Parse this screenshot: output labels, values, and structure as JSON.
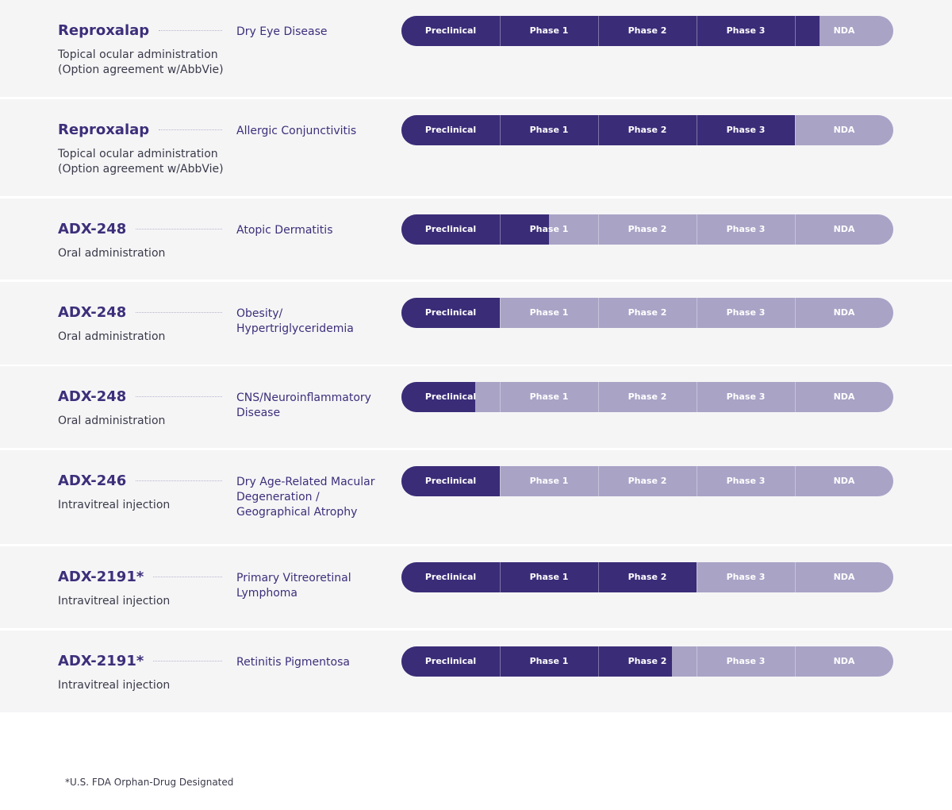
{
  "stages": [
    "Preclinical",
    "Phase 1",
    "Phase 2",
    "Phase 3",
    "NDA"
  ],
  "rows": [
    {
      "drug": "Reproxalap",
      "route": [
        "Topical ocular administration",
        "(Option agreement w/AbbVie)"
      ],
      "indication": [
        "Dry Eye Disease"
      ],
      "progress": 4.25
    },
    {
      "drug": "Reproxalap",
      "route": [
        "Topical ocular administration",
        "(Option agreement w/AbbVie)"
      ],
      "indication": [
        "Allergic Conjunctivitis"
      ],
      "progress": 4.0
    },
    {
      "drug": "ADX-248",
      "route": [
        "Oral administration"
      ],
      "indication": [
        "Atopic Dermatitis"
      ],
      "progress": 1.5
    },
    {
      "drug": "ADX-248",
      "route": [
        "Oral administration"
      ],
      "indication": [
        "Obesity/",
        "Hypertriglyceridemia"
      ],
      "progress": 1.0
    },
    {
      "drug": "ADX-248",
      "route": [
        "Oral administration"
      ],
      "indication": [
        "CNS/Neuroinflammatory",
        "Disease"
      ],
      "progress": 0.75
    },
    {
      "drug": "ADX-246",
      "route": [
        "Intravitreal injection"
      ],
      "indication": [
        "Dry Age-Related Macular",
        "Degeneration /",
        "Geographical Atrophy"
      ],
      "progress": 1.0
    },
    {
      "drug": "ADX-2191*",
      "route": [
        "Intravitreal injection"
      ],
      "indication": [
        "Primary Vitreoretinal",
        "Lymphoma"
      ],
      "progress": 3.0
    },
    {
      "drug": "ADX-2191*",
      "route": [
        "Intravitreal injection"
      ],
      "indication": [
        "Retinitis Pigmentosa"
      ],
      "progress": 2.75
    }
  ],
  "footnote": "*U.S. FDA Orphan-Drug Designated"
}
